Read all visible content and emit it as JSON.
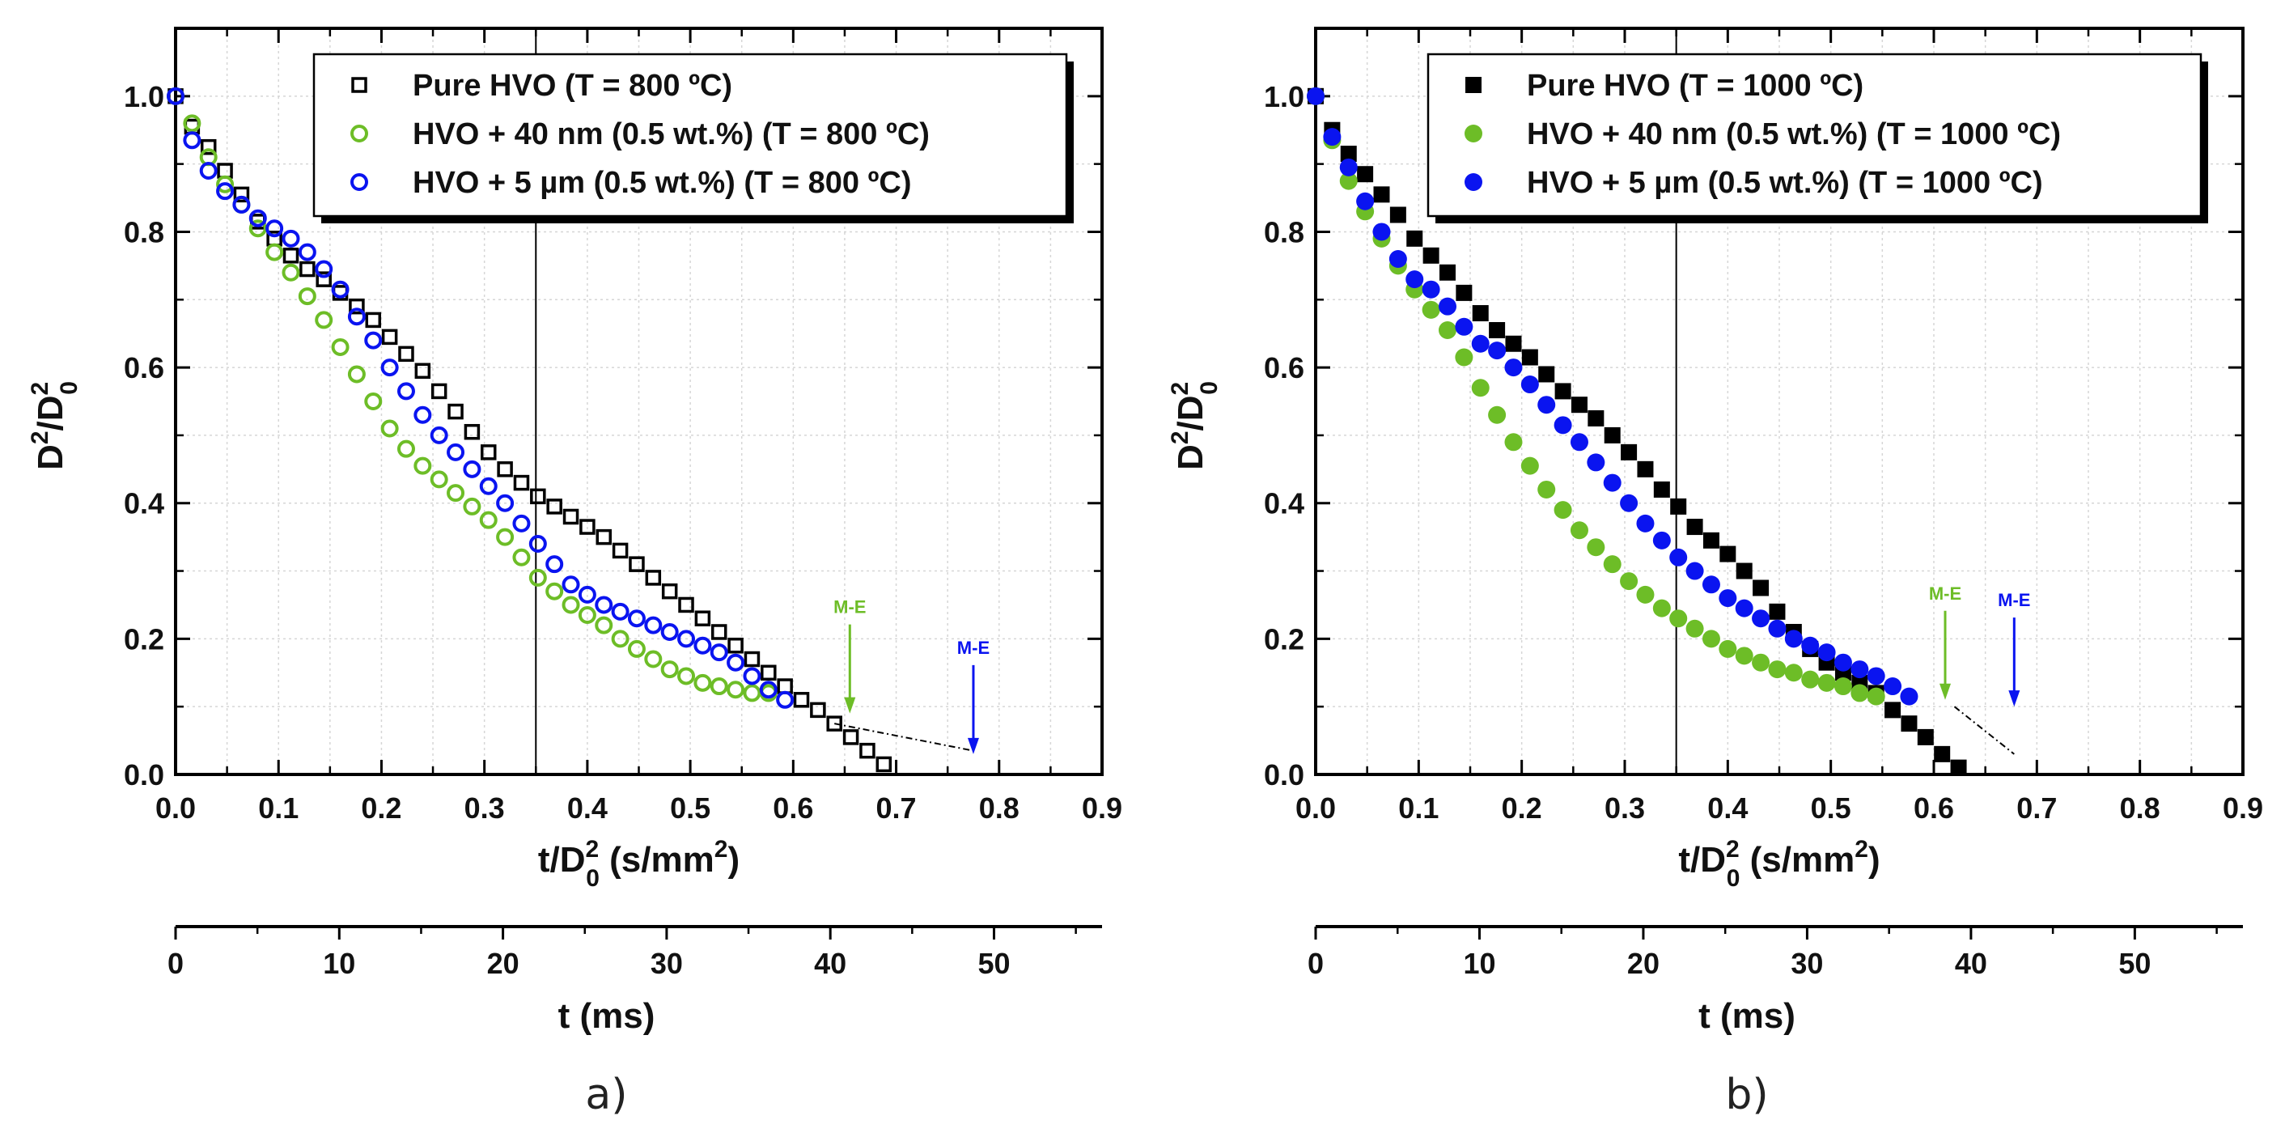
{
  "chart_data": [
    {
      "type": "scatter",
      "panel_label": "a)",
      "xlabel": "t/D²₀ (s/mm²)",
      "xlabel_main": "t/D",
      "xlabel_sup": "2",
      "xlabel_sub": "0",
      "xlabel_rest": " (s/mm",
      "xlabel_rest_sup": "2",
      "xlabel_end": ")",
      "ylabel_main": "D",
      "ylabel_sup": "2",
      "ylabel_mid": "/D",
      "ylabel_sup2": "2",
      "ylabel_sub": "0",
      "secondary_xlabel": "t (ms)",
      "xlim": [
        0,
        0.9
      ],
      "ylim": [
        0,
        1.1
      ],
      "xticks": [
        "0.0",
        "0.1",
        "0.2",
        "0.3",
        "0.4",
        "0.5",
        "0.6",
        "0.7",
        "0.8",
        "0.9"
      ],
      "yticks": [
        "0.0",
        "0.2",
        "0.4",
        "0.6",
        "0.8",
        "1.0"
      ],
      "secondary_xlim": [
        0,
        56.6
      ],
      "secondary_xticks": [
        "0",
        "10",
        "20",
        "30",
        "40",
        "50"
      ],
      "vertical_line_x": 0.35,
      "legend_position": "top-right",
      "marker_style": "open",
      "series": [
        {
          "name": "Pure HVO (T = 800 ºC)",
          "color": "#000000",
          "marker": "square",
          "x": [
            0.0,
            0.016,
            0.032,
            0.048,
            0.064,
            0.08,
            0.096,
            0.112,
            0.128,
            0.144,
            0.16,
            0.176,
            0.192,
            0.208,
            0.224,
            0.24,
            0.256,
            0.272,
            0.288,
            0.304,
            0.32,
            0.336,
            0.352,
            0.368,
            0.384,
            0.4,
            0.416,
            0.432,
            0.448,
            0.464,
            0.48,
            0.496,
            0.512,
            0.528,
            0.544,
            0.56,
            0.576,
            0.592,
            0.608,
            0.624,
            0.64,
            0.656,
            0.672,
            0.688
          ],
          "y": [
            1.0,
            0.955,
            0.925,
            0.89,
            0.855,
            0.815,
            0.79,
            0.765,
            0.745,
            0.73,
            0.71,
            0.69,
            0.67,
            0.645,
            0.62,
            0.595,
            0.565,
            0.535,
            0.505,
            0.475,
            0.45,
            0.43,
            0.41,
            0.395,
            0.38,
            0.365,
            0.35,
            0.33,
            0.31,
            0.29,
            0.27,
            0.25,
            0.23,
            0.21,
            0.19,
            0.17,
            0.15,
            0.13,
            0.11,
            0.095,
            0.075,
            0.055,
            0.035,
            0.015
          ]
        },
        {
          "name": "HVO + 40 nm (0.5 wt.%) (T = 800 ºC)",
          "color": "#6dbd27",
          "marker": "circle",
          "x": [
            0.0,
            0.016,
            0.032,
            0.048,
            0.064,
            0.08,
            0.096,
            0.112,
            0.128,
            0.144,
            0.16,
            0.176,
            0.192,
            0.208,
            0.224,
            0.24,
            0.256,
            0.272,
            0.288,
            0.304,
            0.32,
            0.336,
            0.352,
            0.368,
            0.384,
            0.4,
            0.416,
            0.432,
            0.448,
            0.464,
            0.48,
            0.496,
            0.512,
            0.528,
            0.544,
            0.56,
            0.576
          ],
          "y": [
            1.0,
            0.96,
            0.91,
            0.87,
            0.84,
            0.805,
            0.77,
            0.74,
            0.705,
            0.67,
            0.63,
            0.59,
            0.55,
            0.51,
            0.48,
            0.455,
            0.435,
            0.415,
            0.395,
            0.375,
            0.35,
            0.32,
            0.29,
            0.27,
            0.25,
            0.235,
            0.22,
            0.2,
            0.185,
            0.17,
            0.155,
            0.145,
            0.135,
            0.13,
            0.125,
            0.12,
            0.12
          ]
        },
        {
          "name": "HVO + 5 µm (0.5 wt.%) (T = 800 ºC)",
          "color": "#0a14f0",
          "marker": "circle",
          "x": [
            0.0,
            0.016,
            0.032,
            0.048,
            0.064,
            0.08,
            0.096,
            0.112,
            0.128,
            0.144,
            0.16,
            0.176,
            0.192,
            0.208,
            0.224,
            0.24,
            0.256,
            0.272,
            0.288,
            0.304,
            0.32,
            0.336,
            0.352,
            0.368,
            0.384,
            0.4,
            0.416,
            0.432,
            0.448,
            0.464,
            0.48,
            0.496,
            0.512,
            0.528,
            0.544,
            0.56,
            0.576,
            0.592
          ],
          "y": [
            1.0,
            0.935,
            0.89,
            0.86,
            0.84,
            0.82,
            0.805,
            0.79,
            0.77,
            0.745,
            0.715,
            0.675,
            0.64,
            0.6,
            0.565,
            0.53,
            0.5,
            0.475,
            0.45,
            0.425,
            0.4,
            0.37,
            0.34,
            0.31,
            0.28,
            0.265,
            0.25,
            0.24,
            0.23,
            0.22,
            0.21,
            0.2,
            0.19,
            0.18,
            0.165,
            0.145,
            0.125,
            0.11
          ]
        }
      ],
      "extrapolation": {
        "x": [
          0.64,
          0.775
        ],
        "y": [
          0.075,
          0.035
        ],
        "color": "#000000"
      },
      "annotations": [
        {
          "text": "M-E",
          "x": 0.655,
          "y": 0.09,
          "color": "#6dbd27"
        },
        {
          "text": "M-E",
          "x": 0.775,
          "y": 0.03,
          "color": "#0a14f0"
        }
      ]
    },
    {
      "type": "scatter",
      "panel_label": "b)",
      "xlabel": "t/D²₀ (s/mm²)",
      "xlabel_main": "t/D",
      "xlabel_sup": "2",
      "xlabel_sub": "0",
      "xlabel_rest": " (s/mm",
      "xlabel_rest_sup": "2",
      "xlabel_end": ")",
      "ylabel_main": "D",
      "ylabel_sup": "2",
      "ylabel_mid": "/D",
      "ylabel_sup2": "2",
      "ylabel_sub": "0",
      "secondary_xlabel": "t (ms)",
      "xlim": [
        0,
        0.9
      ],
      "ylim": [
        0,
        1.1
      ],
      "xticks": [
        "0.0",
        "0.1",
        "0.2",
        "0.3",
        "0.4",
        "0.5",
        "0.6",
        "0.7",
        "0.8",
        "0.9"
      ],
      "yticks": [
        "0.0",
        "0.2",
        "0.4",
        "0.6",
        "0.8",
        "1.0"
      ],
      "secondary_xlim": [
        0,
        56.6
      ],
      "secondary_xticks": [
        "0",
        "10",
        "20",
        "30",
        "40",
        "50"
      ],
      "vertical_line_x": 0.35,
      "legend_position": "top-right",
      "marker_style": "filled",
      "series": [
        {
          "name": "Pure HVO (T = 1000 ºC)",
          "color": "#000000",
          "marker": "square",
          "x": [
            0.0,
            0.016,
            0.032,
            0.048,
            0.064,
            0.08,
            0.096,
            0.112,
            0.128,
            0.144,
            0.16,
            0.176,
            0.192,
            0.208,
            0.224,
            0.24,
            0.256,
            0.272,
            0.288,
            0.304,
            0.32,
            0.336,
            0.352,
            0.368,
            0.384,
            0.4,
            0.416,
            0.432,
            0.448,
            0.464,
            0.48,
            0.496,
            0.512,
            0.528,
            0.544,
            0.56,
            0.576,
            0.592,
            0.608,
            0.624
          ],
          "y": [
            1.0,
            0.95,
            0.915,
            0.885,
            0.855,
            0.825,
            0.79,
            0.765,
            0.74,
            0.71,
            0.68,
            0.655,
            0.635,
            0.615,
            0.59,
            0.565,
            0.545,
            0.525,
            0.5,
            0.475,
            0.45,
            0.42,
            0.395,
            0.365,
            0.345,
            0.325,
            0.3,
            0.275,
            0.24,
            0.21,
            0.185,
            0.165,
            0.15,
            0.135,
            0.12,
            0.095,
            0.075,
            0.055,
            0.03,
            0.01
          ]
        },
        {
          "name": "HVO + 40 nm (0.5 wt.%) (T = 1000 ºC)",
          "color": "#6dbd27",
          "marker": "circle",
          "x": [
            0.0,
            0.016,
            0.032,
            0.048,
            0.064,
            0.08,
            0.096,
            0.112,
            0.128,
            0.144,
            0.16,
            0.176,
            0.192,
            0.208,
            0.224,
            0.24,
            0.256,
            0.272,
            0.288,
            0.304,
            0.32,
            0.336,
            0.352,
            0.368,
            0.384,
            0.4,
            0.416,
            0.432,
            0.448,
            0.464,
            0.48,
            0.496,
            0.512,
            0.528,
            0.544
          ],
          "y": [
            1.0,
            0.935,
            0.875,
            0.83,
            0.79,
            0.75,
            0.715,
            0.685,
            0.655,
            0.615,
            0.57,
            0.53,
            0.49,
            0.455,
            0.42,
            0.39,
            0.36,
            0.335,
            0.31,
            0.285,
            0.265,
            0.245,
            0.23,
            0.215,
            0.2,
            0.185,
            0.175,
            0.165,
            0.155,
            0.15,
            0.14,
            0.135,
            0.13,
            0.12,
            0.115
          ]
        },
        {
          "name": "HVO + 5 µm (0.5 wt.%) (T = 1000 ºC)",
          "color": "#0a14f0",
          "marker": "circle",
          "x": [
            0.0,
            0.016,
            0.032,
            0.048,
            0.064,
            0.08,
            0.096,
            0.112,
            0.128,
            0.144,
            0.16,
            0.176,
            0.192,
            0.208,
            0.224,
            0.24,
            0.256,
            0.272,
            0.288,
            0.304,
            0.32,
            0.336,
            0.352,
            0.368,
            0.384,
            0.4,
            0.416,
            0.432,
            0.448,
            0.464,
            0.48,
            0.496,
            0.512,
            0.528,
            0.544,
            0.56,
            0.576
          ],
          "y": [
            1.0,
            0.94,
            0.895,
            0.845,
            0.8,
            0.76,
            0.73,
            0.715,
            0.69,
            0.66,
            0.635,
            0.625,
            0.6,
            0.575,
            0.545,
            0.515,
            0.49,
            0.46,
            0.43,
            0.4,
            0.37,
            0.345,
            0.32,
            0.3,
            0.28,
            0.26,
            0.245,
            0.23,
            0.215,
            0.2,
            0.19,
            0.18,
            0.165,
            0.155,
            0.145,
            0.13,
            0.115
          ]
        }
      ],
      "extrapolation": {
        "x": [
          0.62,
          0.678
        ],
        "y": [
          0.1,
          0.03
        ],
        "color": "#000000"
      },
      "annotations": [
        {
          "text": "M-E",
          "x": 0.611,
          "y": 0.11,
          "color": "#6dbd27"
        },
        {
          "text": "M-E",
          "x": 0.678,
          "y": 0.1,
          "color": "#0a14f0"
        }
      ]
    }
  ]
}
